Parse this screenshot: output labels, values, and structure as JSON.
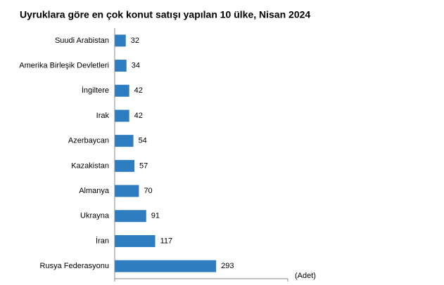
{
  "chart_data": {
    "type": "hbar",
    "title": "Uyruklara göre en çok konut satışı yapılan 10 ülke, Nisan 2024",
    "categories": [
      "Suudi Arabistan",
      "Amerika Birleşik Devletleri",
      "İngiltere",
      "Irak",
      "Azerbaycan",
      "Kazakistan",
      "Almanya",
      "Ukrayna",
      "İran",
      "Rusya Federasyonu"
    ],
    "values": [
      32,
      34,
      42,
      42,
      54,
      57,
      70,
      91,
      117,
      293
    ],
    "color": "#2e7dc0",
    "x_label": "(Adet)",
    "xlim": [
      0,
      500
    ]
  }
}
